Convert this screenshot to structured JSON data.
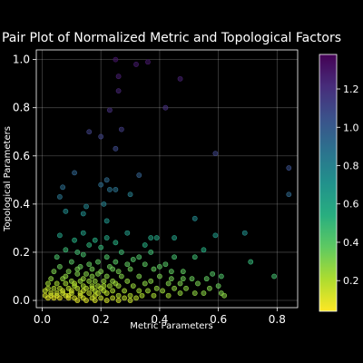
{
  "chart_data": {
    "type": "scatter",
    "title": "Pair Plot of Normalized Metric and Topological Factors",
    "xlabel": "Metric Parameters",
    "ylabel": "Topological Parameters",
    "xlim": [
      -0.02,
      0.87
    ],
    "ylim": [
      -0.03,
      1.04
    ],
    "xticks": [
      "0.0",
      "0.2",
      "0.4",
      "0.6",
      "0.8"
    ],
    "yticks": [
      "0.0",
      "0.2",
      "0.4",
      "0.6",
      "0.8",
      "1.0"
    ],
    "grid": true,
    "colorbar": {
      "colormap": "viridis_r",
      "range": [
        0.04,
        1.38
      ],
      "ticks": [
        "0.2",
        "0.4",
        "0.6",
        "0.8",
        "1.0",
        "1.2"
      ]
    },
    "points": [
      [
        0.25,
        1.0,
        1.3
      ],
      [
        0.32,
        0.98,
        1.28
      ],
      [
        0.36,
        0.99,
        1.29
      ],
      [
        0.47,
        0.92,
        1.26
      ],
      [
        0.26,
        0.93,
        1.27
      ],
      [
        0.26,
        0.87,
        1.24
      ],
      [
        0.23,
        0.79,
        1.2
      ],
      [
        0.42,
        0.8,
        1.2
      ],
      [
        0.27,
        0.71,
        1.14
      ],
      [
        0.16,
        0.7,
        1.12
      ],
      [
        0.2,
        0.68,
        1.11
      ],
      [
        0.59,
        0.61,
        1.1
      ],
      [
        0.25,
        0.63,
        1.08
      ],
      [
        0.84,
        0.55,
        1.05
      ],
      [
        0.33,
        0.52,
        0.97
      ],
      [
        0.11,
        0.53,
        0.95
      ],
      [
        0.22,
        0.5,
        0.92
      ],
      [
        0.07,
        0.47,
        0.9
      ],
      [
        0.2,
        0.48,
        0.9
      ],
      [
        0.06,
        0.43,
        0.86
      ],
      [
        0.23,
        0.46,
        0.88
      ],
      [
        0.84,
        0.44,
        0.93
      ],
      [
        0.25,
        0.46,
        0.88
      ],
      [
        0.21,
        0.4,
        0.8
      ],
      [
        0.3,
        0.44,
        0.82
      ],
      [
        0.15,
        0.39,
        0.78
      ],
      [
        0.08,
        0.37,
        0.74
      ],
      [
        0.14,
        0.36,
        0.73
      ],
      [
        0.22,
        0.33,
        0.7
      ],
      [
        0.52,
        0.34,
        0.76
      ],
      [
        0.69,
        0.28,
        0.72
      ],
      [
        0.06,
        0.27,
        0.62
      ],
      [
        0.14,
        0.28,
        0.63
      ],
      [
        0.29,
        0.28,
        0.65
      ],
      [
        0.22,
        0.26,
        0.6
      ],
      [
        0.37,
        0.26,
        0.6
      ],
      [
        0.39,
        0.26,
        0.6
      ],
      [
        0.45,
        0.26,
        0.62
      ],
      [
        0.59,
        0.27,
        0.66
      ],
      [
        0.11,
        0.25,
        0.56
      ],
      [
        0.18,
        0.25,
        0.56
      ],
      [
        0.25,
        0.24,
        0.55
      ],
      [
        0.35,
        0.23,
        0.55
      ],
      [
        0.16,
        0.23,
        0.52
      ],
      [
        0.2,
        0.22,
        0.5
      ],
      [
        0.55,
        0.21,
        0.55
      ],
      [
        0.08,
        0.21,
        0.48
      ],
      [
        0.12,
        0.2,
        0.46
      ],
      [
        0.27,
        0.2,
        0.47
      ],
      [
        0.05,
        0.18,
        0.43
      ],
      [
        0.14,
        0.19,
        0.44
      ],
      [
        0.22,
        0.18,
        0.42
      ],
      [
        0.31,
        0.17,
        0.41
      ],
      [
        0.45,
        0.18,
        0.45
      ],
      [
        0.52,
        0.18,
        0.47
      ],
      [
        0.71,
        0.16,
        0.5
      ],
      [
        0.1,
        0.16,
        0.39
      ],
      [
        0.19,
        0.16,
        0.38
      ],
      [
        0.25,
        0.16,
        0.39
      ],
      [
        0.35,
        0.15,
        0.38
      ],
      [
        0.42,
        0.15,
        0.4
      ],
      [
        0.06,
        0.14,
        0.35
      ],
      [
        0.13,
        0.14,
        0.35
      ],
      [
        0.17,
        0.13,
        0.33
      ],
      [
        0.24,
        0.13,
        0.34
      ],
      [
        0.3,
        0.13,
        0.34
      ],
      [
        0.38,
        0.13,
        0.36
      ],
      [
        0.48,
        0.12,
        0.37
      ],
      [
        0.58,
        0.11,
        0.4
      ],
      [
        0.61,
        0.1,
        0.42
      ],
      [
        0.04,
        0.12,
        0.31
      ],
      [
        0.09,
        0.12,
        0.31
      ],
      [
        0.12,
        0.11,
        0.3
      ],
      [
        0.15,
        0.11,
        0.29
      ],
      [
        0.19,
        0.11,
        0.3
      ],
      [
        0.22,
        0.1,
        0.29
      ],
      [
        0.27,
        0.1,
        0.3
      ],
      [
        0.33,
        0.1,
        0.31
      ],
      [
        0.4,
        0.1,
        0.32
      ],
      [
        0.44,
        0.09,
        0.33
      ],
      [
        0.51,
        0.09,
        0.35
      ],
      [
        0.56,
        0.09,
        0.37
      ],
      [
        0.79,
        0.1,
        0.45
      ],
      [
        0.03,
        0.09,
        0.27
      ],
      [
        0.07,
        0.09,
        0.26
      ],
      [
        0.1,
        0.08,
        0.25
      ],
      [
        0.13,
        0.08,
        0.25
      ],
      [
        0.16,
        0.08,
        0.25
      ],
      [
        0.18,
        0.08,
        0.25
      ],
      [
        0.21,
        0.08,
        0.25
      ],
      [
        0.24,
        0.08,
        0.26
      ],
      [
        0.29,
        0.08,
        0.27
      ],
      [
        0.35,
        0.07,
        0.28
      ],
      [
        0.37,
        0.08,
        0.29
      ],
      [
        0.43,
        0.07,
        0.3
      ],
      [
        0.47,
        0.07,
        0.31
      ],
      [
        0.53,
        0.07,
        0.32
      ],
      [
        0.6,
        0.06,
        0.35
      ],
      [
        0.02,
        0.07,
        0.23
      ],
      [
        0.05,
        0.07,
        0.22
      ],
      [
        0.08,
        0.07,
        0.22
      ],
      [
        0.11,
        0.06,
        0.21
      ],
      [
        0.14,
        0.06,
        0.21
      ],
      [
        0.17,
        0.06,
        0.22
      ],
      [
        0.19,
        0.06,
        0.22
      ],
      [
        0.23,
        0.06,
        0.23
      ],
      [
        0.26,
        0.06,
        0.24
      ],
      [
        0.31,
        0.06,
        0.25
      ],
      [
        0.39,
        0.05,
        0.26
      ],
      [
        0.45,
        0.05,
        0.27
      ],
      [
        0.49,
        0.05,
        0.28
      ],
      [
        0.57,
        0.05,
        0.3
      ],
      [
        0.02,
        0.05,
        0.19
      ],
      [
        0.04,
        0.05,
        0.19
      ],
      [
        0.06,
        0.05,
        0.18
      ],
      [
        0.09,
        0.05,
        0.18
      ],
      [
        0.12,
        0.05,
        0.18
      ],
      [
        0.15,
        0.05,
        0.19
      ],
      [
        0.18,
        0.04,
        0.19
      ],
      [
        0.21,
        0.04,
        0.2
      ],
      [
        0.24,
        0.04,
        0.21
      ],
      [
        0.28,
        0.04,
        0.22
      ],
      [
        0.33,
        0.04,
        0.23
      ],
      [
        0.36,
        0.04,
        0.24
      ],
      [
        0.41,
        0.04,
        0.25
      ],
      [
        0.47,
        0.03,
        0.26
      ],
      [
        0.52,
        0.03,
        0.27
      ],
      [
        0.55,
        0.03,
        0.28
      ],
      [
        0.61,
        0.03,
        0.3
      ],
      [
        0.01,
        0.04,
        0.16
      ],
      [
        0.03,
        0.03,
        0.15
      ],
      [
        0.05,
        0.03,
        0.15
      ],
      [
        0.07,
        0.03,
        0.15
      ],
      [
        0.1,
        0.03,
        0.15
      ],
      [
        0.13,
        0.03,
        0.15
      ],
      [
        0.16,
        0.03,
        0.16
      ],
      [
        0.19,
        0.03,
        0.17
      ],
      [
        0.22,
        0.03,
        0.18
      ],
      [
        0.26,
        0.02,
        0.19
      ],
      [
        0.3,
        0.02,
        0.2
      ],
      [
        0.34,
        0.02,
        0.21
      ],
      [
        0.38,
        0.02,
        0.22
      ],
      [
        0.43,
        0.02,
        0.23
      ],
      [
        0.62,
        0.02,
        0.28
      ],
      [
        0.01,
        0.02,
        0.12
      ],
      [
        0.03,
        0.02,
        0.12
      ],
      [
        0.05,
        0.02,
        0.12
      ],
      [
        0.08,
        0.02,
        0.12
      ],
      [
        0.11,
        0.01,
        0.12
      ],
      [
        0.14,
        0.01,
        0.13
      ],
      [
        0.17,
        0.01,
        0.14
      ],
      [
        0.2,
        0.01,
        0.15
      ],
      [
        0.24,
        0.01,
        0.16
      ],
      [
        0.28,
        0.01,
        0.17
      ],
      [
        0.32,
        0.01,
        0.18
      ],
      [
        0.02,
        0.01,
        0.1
      ],
      [
        0.04,
        0.01,
        0.09
      ],
      [
        0.06,
        0.01,
        0.09
      ],
      [
        0.09,
        0.01,
        0.1
      ],
      [
        0.12,
        0.0,
        0.1
      ],
      [
        0.15,
        0.0,
        0.11
      ],
      [
        0.18,
        0.0,
        0.12
      ],
      [
        0.22,
        0.0,
        0.13
      ],
      [
        0.26,
        0.0,
        0.14
      ],
      [
        0.3,
        0.0,
        0.16
      ],
      [
        0.07,
        0.04,
        0.14
      ],
      [
        0.1,
        0.04,
        0.14
      ],
      [
        0.14,
        0.04,
        0.16
      ],
      [
        0.17,
        0.05,
        0.18
      ],
      [
        0.2,
        0.05,
        0.19
      ],
      [
        0.11,
        0.07,
        0.2
      ],
      [
        0.14,
        0.09,
        0.25
      ],
      [
        0.17,
        0.1,
        0.28
      ],
      [
        0.2,
        0.12,
        0.31
      ],
      [
        0.23,
        0.14,
        0.35
      ],
      [
        0.08,
        0.1,
        0.27
      ],
      [
        0.12,
        0.13,
        0.32
      ],
      [
        0.16,
        0.15,
        0.36
      ],
      [
        0.26,
        0.12,
        0.32
      ],
      [
        0.29,
        0.15,
        0.37
      ],
      [
        0.33,
        0.18,
        0.42
      ],
      [
        0.37,
        0.2,
        0.47
      ],
      [
        0.4,
        0.14,
        0.38
      ],
      [
        0.44,
        0.12,
        0.37
      ],
      [
        0.48,
        0.09,
        0.34
      ],
      [
        0.09,
        0.02,
        0.11
      ],
      [
        0.13,
        0.02,
        0.13
      ],
      [
        0.18,
        0.02,
        0.15
      ],
      [
        0.21,
        0.06,
        0.21
      ],
      [
        0.25,
        0.07,
        0.24
      ]
    ]
  }
}
